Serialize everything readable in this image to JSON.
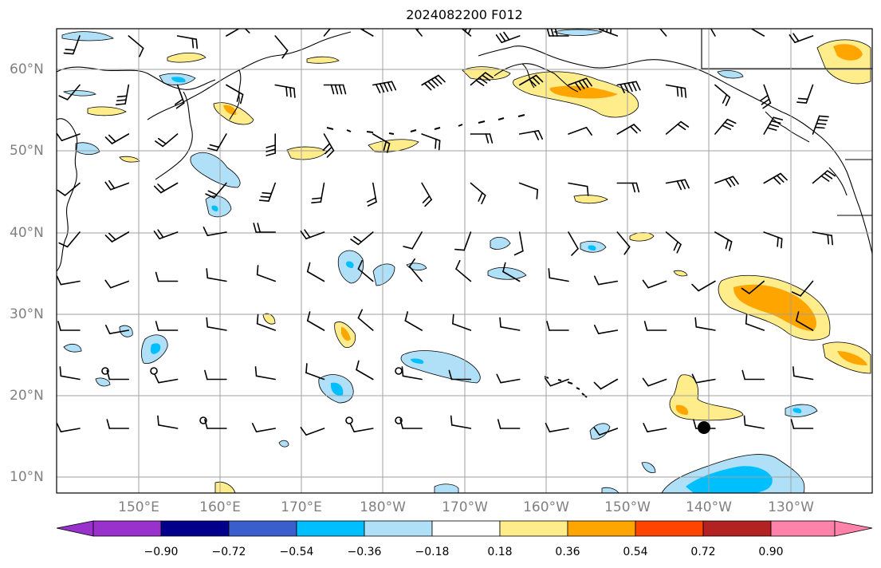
{
  "title": "2024082200 F012",
  "lat_labels": [
    "60°N",
    "50°N",
    "40°N",
    "30°N",
    "20°N",
    "10°N"
  ],
  "lon_labels": [
    "150°E",
    "160°E",
    "170°E",
    "180°W",
    "170°W",
    "160°W",
    "150°W",
    "140°W",
    "130°W"
  ],
  "colorbar": {
    "ticks": [
      "−0.90",
      "−0.72",
      "−0.54",
      "−0.36",
      "−0.18",
      "0.18",
      "0.36",
      "0.54",
      "0.72",
      "0.90"
    ],
    "colors": [
      "#9932cc",
      "#00008b",
      "#3a5fcd",
      "#00bfff",
      "#b0e0f8",
      "#ffffff",
      "#ffec8b",
      "#ffa500",
      "#ff4500",
      "#b22222",
      "#ff82ab"
    ]
  },
  "colors": {
    "frame": "#000000",
    "grid": "#a0a0a0",
    "coast": "#000000",
    "barb": "#000000"
  }
}
